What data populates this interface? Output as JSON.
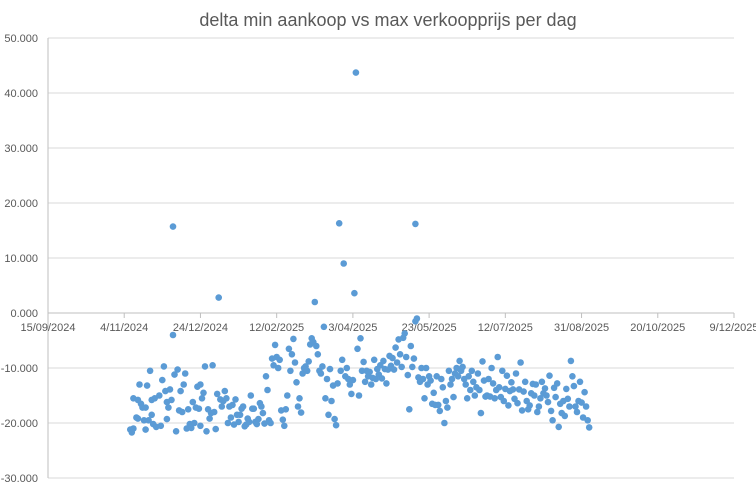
{
  "chart_data": {
    "type": "scatter",
    "title": "delta min aankoop vs max verkoopprijs per dag",
    "xlabel": "",
    "ylabel": "",
    "series_color": "#5b9bd5",
    "grid": "horizontal",
    "xlim_serial": [
      45550,
      46000
    ],
    "ylim": [
      -30000,
      50000
    ],
    "y_ticks": [
      {
        "value": 50000,
        "label": "50.000"
      },
      {
        "value": 40000,
        "label": "40.000"
      },
      {
        "value": 30000,
        "label": "30.000"
      },
      {
        "value": 20000,
        "label": "20.000"
      },
      {
        "value": 10000,
        "label": "10.000"
      },
      {
        "value": 0,
        "label": "0.000"
      },
      {
        "value": -10000,
        "label": "-10.000"
      },
      {
        "value": -20000,
        "label": "-20.000"
      },
      {
        "value": -30000,
        "label": "-30.000"
      }
    ],
    "x_ticks": [
      {
        "value": 45550,
        "label": "15/09/2024"
      },
      {
        "value": 45600,
        "label": "4/11/2024"
      },
      {
        "value": 45650,
        "label": "24/12/2024"
      },
      {
        "value": 45700,
        "label": "12/02/2025"
      },
      {
        "value": 45750,
        "label": "3/04/2025"
      },
      {
        "value": 45800,
        "label": "23/05/2025"
      },
      {
        "value": 45850,
        "label": "12/07/2025"
      },
      {
        "value": 45900,
        "label": "31/08/2025"
      },
      {
        "value": 45950,
        "label": "20/10/2025"
      },
      {
        "value": 46000,
        "label": "9/12/2025"
      }
    ],
    "points": [
      [
        45604,
        -21200
      ],
      [
        45605,
        -21700
      ],
      [
        45606,
        -15500
      ],
      [
        45606,
        -21000
      ],
      [
        45608,
        -19000
      ],
      [
        45609,
        -19200
      ],
      [
        45609,
        -15800
      ],
      [
        45610,
        -13000
      ],
      [
        45611,
        -16500
      ],
      [
        45612,
        -17200
      ],
      [
        45613,
        -19500
      ],
      [
        45614,
        -17200
      ],
      [
        45614,
        -21200
      ],
      [
        45615,
        -13200
      ],
      [
        45616,
        -19500
      ],
      [
        45617,
        -10500
      ],
      [
        45618,
        -15800
      ],
      [
        45618,
        -18500
      ],
      [
        45619,
        -20200
      ],
      [
        45620,
        -15500
      ],
      [
        45621,
        -20700
      ],
      [
        45623,
        -15000
      ],
      [
        45624,
        -20500
      ],
      [
        45625,
        -12200
      ],
      [
        45626,
        -9700
      ],
      [
        45627,
        -14200
      ],
      [
        45628,
        -16200
      ],
      [
        45628,
        -19300
      ],
      [
        45629,
        -17200
      ],
      [
        45630,
        -13900
      ],
      [
        45631,
        -15800
      ],
      [
        45632,
        -4000
      ],
      [
        45632,
        15700
      ],
      [
        45633,
        -11200
      ],
      [
        45634,
        -21500
      ],
      [
        45635,
        -10300
      ],
      [
        45636,
        -17700
      ],
      [
        45637,
        -14200
      ],
      [
        45638,
        -18000
      ],
      [
        45639,
        -13000
      ],
      [
        45640,
        -11000
      ],
      [
        45641,
        -21000
      ],
      [
        45642,
        -17500
      ],
      [
        45643,
        -20200
      ],
      [
        45644,
        -20900
      ],
      [
        45645,
        -16200
      ],
      [
        45646,
        -20000
      ],
      [
        45647,
        -17200
      ],
      [
        45648,
        -13400
      ],
      [
        45649,
        -17400
      ],
      [
        45650,
        -20500
      ],
      [
        45650,
        -13000
      ],
      [
        45651,
        -15500
      ],
      [
        45652,
        -14500
      ],
      [
        45653,
        -9700
      ],
      [
        45654,
        -21500
      ],
      [
        45655,
        -17500
      ],
      [
        45656,
        -19200
      ],
      [
        45657,
        -18200
      ],
      [
        45658,
        -9500
      ],
      [
        45659,
        -18000
      ],
      [
        45660,
        -21100
      ],
      [
        45661,
        -14700
      ],
      [
        45662,
        2800
      ],
      [
        45663,
        -15700
      ],
      [
        45664,
        -17000
      ],
      [
        45665,
        -16000
      ],
      [
        45666,
        -14200
      ],
      [
        45667,
        -15500
      ],
      [
        45668,
        -20000
      ],
      [
        45669,
        -17000
      ],
      [
        45670,
        -19000
      ],
      [
        45671,
        -16700
      ],
      [
        45672,
        -20300
      ],
      [
        45673,
        -15700
      ],
      [
        45674,
        -18500
      ],
      [
        45675,
        -19800
      ],
      [
        45676,
        -18500
      ],
      [
        45677,
        -17400
      ],
      [
        45678,
        -17000
      ],
      [
        45679,
        -20600
      ],
      [
        45680,
        -20300
      ],
      [
        45681,
        -19200
      ],
      [
        45682,
        -19800
      ],
      [
        45683,
        -15000
      ],
      [
        45684,
        -17400
      ],
      [
        45685,
        -17400
      ],
      [
        45686,
        -19800
      ],
      [
        45687,
        -20200
      ],
      [
        45688,
        -19300
      ],
      [
        45689,
        -16400
      ],
      [
        45690,
        -17000
      ],
      [
        45691,
        -18200
      ],
      [
        45692,
        -20100
      ],
      [
        45693,
        -11500
      ],
      [
        45694,
        -14000
      ],
      [
        45695,
        -19500
      ],
      [
        45696,
        -20000
      ],
      [
        45697,
        -8300
      ],
      [
        45698,
        -9500
      ],
      [
        45699,
        -5800
      ],
      [
        45700,
        -8000
      ],
      [
        45701,
        -10000
      ],
      [
        45702,
        -8500
      ],
      [
        45703,
        -17700
      ],
      [
        45704,
        -19400
      ],
      [
        45705,
        -20500
      ],
      [
        45706,
        -17500
      ],
      [
        45707,
        -15000
      ],
      [
        45708,
        -6500
      ],
      [
        45709,
        -10500
      ],
      [
        45710,
        -7500
      ],
      [
        45711,
        -4700
      ],
      [
        45712,
        -9000
      ],
      [
        45713,
        -12600
      ],
      [
        45714,
        -17000
      ],
      [
        45715,
        -15500
      ],
      [
        45716,
        -18100
      ],
      [
        45717,
        -11000
      ],
      [
        45718,
        -10000
      ],
      [
        45719,
        -9700
      ],
      [
        45720,
        -10500
      ],
      [
        45721,
        -8800
      ],
      [
        45722,
        -5700
      ],
      [
        45723,
        -4600
      ],
      [
        45724,
        -5300
      ],
      [
        45725,
        2000
      ],
      [
        45726,
        -6000
      ],
      [
        45727,
        -7500
      ],
      [
        45728,
        -10500
      ],
      [
        45729,
        -11000
      ],
      [
        45730,
        -9700
      ],
      [
        45731,
        -2500
      ],
      [
        45732,
        -15500
      ],
      [
        45733,
        -12000
      ],
      [
        45734,
        -18500
      ],
      [
        45735,
        -10200
      ],
      [
        45736,
        -16000
      ],
      [
        45737,
        -13200
      ],
      [
        45738,
        -19300
      ],
      [
        45739,
        -20400
      ],
      [
        45740,
        -12800
      ],
      [
        45741,
        16300
      ],
      [
        45742,
        -10500
      ],
      [
        45743,
        -8500
      ],
      [
        45744,
        9000
      ],
      [
        45745,
        -11500
      ],
      [
        45746,
        -10000
      ],
      [
        45747,
        -12000
      ],
      [
        45748,
        -13000
      ],
      [
        45749,
        -14700
      ],
      [
        45750,
        -12200
      ],
      [
        45751,
        3600
      ],
      [
        45752,
        43700
      ],
      [
        45753,
        -6500
      ],
      [
        45754,
        -15000
      ],
      [
        45755,
        -4600
      ],
      [
        45756,
        -10500
      ],
      [
        45757,
        -8900
      ],
      [
        45758,
        -12500
      ],
      [
        45759,
        -10500
      ],
      [
        45760,
        -11500
      ],
      [
        45761,
        -10700
      ],
      [
        45762,
        -13000
      ],
      [
        45763,
        -11800
      ],
      [
        45764,
        -8500
      ],
      [
        45765,
        -12000
      ],
      [
        45766,
        -10200
      ],
      [
        45767,
        -11200
      ],
      [
        45768,
        -9500
      ],
      [
        45769,
        -11900
      ],
      [
        45770,
        -8700
      ],
      [
        45771,
        -10200
      ],
      [
        45772,
        -12800
      ],
      [
        45773,
        -10300
      ],
      [
        45774,
        -7800
      ],
      [
        45775,
        -9600
      ],
      [
        45776,
        -8200
      ],
      [
        45777,
        -10300
      ],
      [
        45778,
        -6300
      ],
      [
        45779,
        -9000
      ],
      [
        45780,
        -4800
      ],
      [
        45781,
        -7500
      ],
      [
        45782,
        -9800
      ],
      [
        45783,
        -4500
      ],
      [
        45784,
        -3700
      ],
      [
        45785,
        -8000
      ],
      [
        45786,
        -11300
      ],
      [
        45787,
        -17500
      ],
      [
        45788,
        -6000
      ],
      [
        45789,
        -9800
      ],
      [
        45790,
        -8300
      ],
      [
        45791,
        16200
      ],
      [
        45791,
        -1500
      ],
      [
        45792,
        -1000
      ],
      [
        45793,
        -11700
      ],
      [
        45794,
        -12500
      ],
      [
        45795,
        -10000
      ],
      [
        45796,
        -12000
      ],
      [
        45797,
        -15500
      ],
      [
        45798,
        -10000
      ],
      [
        45799,
        -13000
      ],
      [
        45800,
        -11500
      ],
      [
        45801,
        -12300
      ],
      [
        45802,
        -16500
      ],
      [
        45803,
        -14500
      ],
      [
        45804,
        -16700
      ],
      [
        45805,
        -11500
      ],
      [
        45806,
        -16700
      ],
      [
        45807,
        -17800
      ],
      [
        45808,
        -12000
      ],
      [
        45809,
        -13500
      ],
      [
        45810,
        -20000
      ],
      [
        45811,
        -16000
      ],
      [
        45812,
        -17200
      ],
      [
        45813,
        -10500
      ],
      [
        45814,
        -13000
      ],
      [
        45815,
        -12000
      ],
      [
        45816,
        -15300
      ],
      [
        45817,
        -11000
      ],
      [
        45818,
        -10000
      ],
      [
        45819,
        -11500
      ],
      [
        45820,
        -8700
      ],
      [
        45821,
        -10500
      ],
      [
        45822,
        -9800
      ],
      [
        45823,
        -12000
      ],
      [
        45824,
        -13000
      ],
      [
        45825,
        -15500
      ],
      [
        45826,
        -11500
      ],
      [
        45827,
        -14000
      ],
      [
        45828,
        -10500
      ],
      [
        45829,
        -12500
      ],
      [
        45830,
        -15000
      ],
      [
        45831,
        -13500
      ],
      [
        45832,
        -11000
      ],
      [
        45833,
        -14000
      ],
      [
        45834,
        -18200
      ],
      [
        45835,
        -8800
      ],
      [
        45836,
        -12300
      ],
      [
        45837,
        -15200
      ],
      [
        45838,
        -15000
      ],
      [
        45839,
        -12000
      ],
      [
        45840,
        -15200
      ],
      [
        45841,
        -10000
      ],
      [
        45842,
        -12800
      ],
      [
        45843,
        -15500
      ],
      [
        45844,
        -14000
      ],
      [
        45845,
        -8000
      ],
      [
        45846,
        -13500
      ],
      [
        45847,
        -15300
      ],
      [
        45848,
        -10500
      ],
      [
        45849,
        -16000
      ],
      [
        45850,
        -13800
      ],
      [
        45851,
        -11400
      ],
      [
        45852,
        -16800
      ],
      [
        45853,
        -14200
      ],
      [
        45854,
        -12600
      ],
      [
        45855,
        -13900
      ],
      [
        45856,
        -15600
      ],
      [
        45857,
        -11000
      ],
      [
        45858,
        -16400
      ],
      [
        45859,
        -13900
      ],
      [
        45860,
        -9000
      ],
      [
        45861,
        -17700
      ],
      [
        45862,
        -14300
      ],
      [
        45863,
        -12500
      ],
      [
        45864,
        -16000
      ],
      [
        45865,
        -17500
      ],
      [
        45866,
        -16800
      ],
      [
        45867,
        -14600
      ],
      [
        45868,
        -12900
      ],
      [
        45869,
        -15000
      ],
      [
        45870,
        -13000
      ],
      [
        45871,
        -18000
      ],
      [
        45872,
        -17000
      ],
      [
        45873,
        -15500
      ],
      [
        45874,
        -12500
      ],
      [
        45875,
        -14600
      ],
      [
        45876,
        -13700
      ],
      [
        45877,
        -15000
      ],
      [
        45878,
        -16200
      ],
      [
        45879,
        -11400
      ],
      [
        45880,
        -17800
      ],
      [
        45881,
        -19500
      ],
      [
        45882,
        -13600
      ],
      [
        45883,
        -15300
      ],
      [
        45884,
        -12800
      ],
      [
        45885,
        -20700
      ],
      [
        45886,
        -16500
      ],
      [
        45887,
        -18200
      ],
      [
        45888,
        -16000
      ],
      [
        45889,
        -18700
      ],
      [
        45890,
        -13800
      ],
      [
        45891,
        -15600
      ],
      [
        45892,
        -17000
      ],
      [
        45893,
        -8700
      ],
      [
        45894,
        -11500
      ],
      [
        45895,
        -13300
      ],
      [
        45896,
        -17000
      ],
      [
        45897,
        -18000
      ],
      [
        45898,
        -16000
      ],
      [
        45899,
        -12500
      ],
      [
        45900,
        -16300
      ],
      [
        45901,
        -19000
      ],
      [
        45902,
        -14400
      ],
      [
        45903,
        -17000
      ],
      [
        45904,
        -19500
      ],
      [
        45905,
        -20800
      ]
    ],
    "annotations": []
  }
}
